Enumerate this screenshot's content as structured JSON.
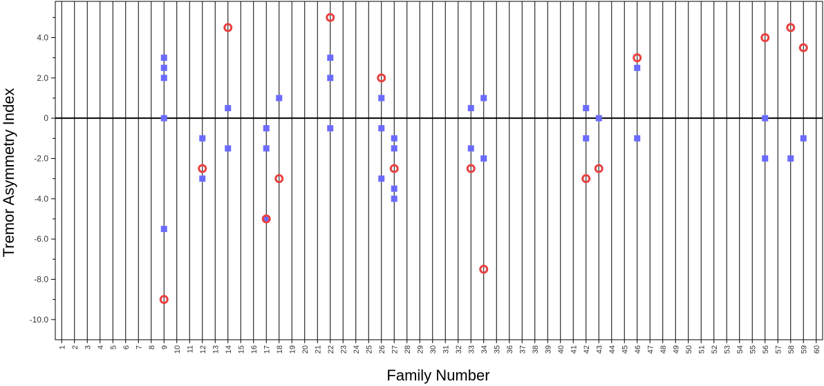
{
  "chart_data": {
    "type": "scatter",
    "title": "",
    "xlabel": "Family Number",
    "ylabel": "Tremor Asymmetry Index",
    "ylim": [
      -11,
      5.8
    ],
    "yticks": [
      "-10.0",
      "-8.0",
      "-6.0",
      "-4.0",
      "-2.0",
      "0",
      "2.0",
      "4.0"
    ],
    "categories": [
      "1",
      "2",
      "3",
      "4",
      "5",
      "6",
      "7",
      "8",
      "9",
      "10",
      "11",
      "12",
      "13",
      "14",
      "15",
      "16",
      "17",
      "18",
      "19",
      "20",
      "21",
      "22",
      "23",
      "24",
      "25",
      "26",
      "27",
      "28",
      "29",
      "30",
      "31",
      "32",
      "33",
      "34",
      "35",
      "36",
      "37",
      "38",
      "39",
      "40",
      "41",
      "42",
      "43",
      "44",
      "45",
      "46",
      "47",
      "48",
      "49",
      "50",
      "51",
      "52",
      "53",
      "54",
      "55",
      "56",
      "57",
      "58",
      "59",
      "60"
    ],
    "grid": "vertical",
    "zero_line": true,
    "series": [
      {
        "marker": "square",
        "color": "#6b6bff",
        "points": [
          {
            "x": "9",
            "y": 3.0
          },
          {
            "x": "9",
            "y": 2.5
          },
          {
            "x": "9",
            "y": 2.0
          },
          {
            "x": "9",
            "y": 0.0
          },
          {
            "x": "9",
            "y": -5.5
          },
          {
            "x": "12",
            "y": -1.0
          },
          {
            "x": "12",
            "y": -3.0
          },
          {
            "x": "14",
            "y": 0.5
          },
          {
            "x": "14",
            "y": -1.5
          },
          {
            "x": "17",
            "y": -0.5
          },
          {
            "x": "17",
            "y": -1.5
          },
          {
            "x": "17",
            "y": -5.0
          },
          {
            "x": "18",
            "y": 1.0
          },
          {
            "x": "22",
            "y": 3.0
          },
          {
            "x": "22",
            "y": 2.0
          },
          {
            "x": "22",
            "y": -0.5
          },
          {
            "x": "26",
            "y": 1.0
          },
          {
            "x": "26",
            "y": -0.5
          },
          {
            "x": "26",
            "y": -3.0
          },
          {
            "x": "27",
            "y": -1.0
          },
          {
            "x": "27",
            "y": -1.5
          },
          {
            "x": "27",
            "y": -3.5
          },
          {
            "x": "27",
            "y": -4.0
          },
          {
            "x": "33",
            "y": 0.5
          },
          {
            "x": "33",
            "y": -1.5
          },
          {
            "x": "34",
            "y": 1.0
          },
          {
            "x": "34",
            "y": -2.0
          },
          {
            "x": "42",
            "y": 0.5
          },
          {
            "x": "42",
            "y": -1.0
          },
          {
            "x": "43",
            "y": 0.0
          },
          {
            "x": "46",
            "y": 2.5
          },
          {
            "x": "46",
            "y": -1.0
          },
          {
            "x": "56",
            "y": 0.0
          },
          {
            "x": "56",
            "y": -2.0
          },
          {
            "x": "58",
            "y": -2.0
          },
          {
            "x": "59",
            "y": -1.0
          }
        ]
      },
      {
        "marker": "circle",
        "color": "#e84040",
        "points": [
          {
            "x": "9",
            "y": -9.0
          },
          {
            "x": "12",
            "y": -2.5
          },
          {
            "x": "14",
            "y": 4.5
          },
          {
            "x": "17",
            "y": -5.0
          },
          {
            "x": "18",
            "y": -3.0
          },
          {
            "x": "22",
            "y": 5.0
          },
          {
            "x": "26",
            "y": 2.0
          },
          {
            "x": "27",
            "y": -2.5
          },
          {
            "x": "33",
            "y": -2.5
          },
          {
            "x": "34",
            "y": -7.5
          },
          {
            "x": "42",
            "y": -3.0
          },
          {
            "x": "43",
            "y": -2.5
          },
          {
            "x": "46",
            "y": 3.0
          },
          {
            "x": "56",
            "y": 4.0
          },
          {
            "x": "58",
            "y": 4.5
          },
          {
            "x": "59",
            "y": 3.5
          }
        ]
      }
    ]
  }
}
